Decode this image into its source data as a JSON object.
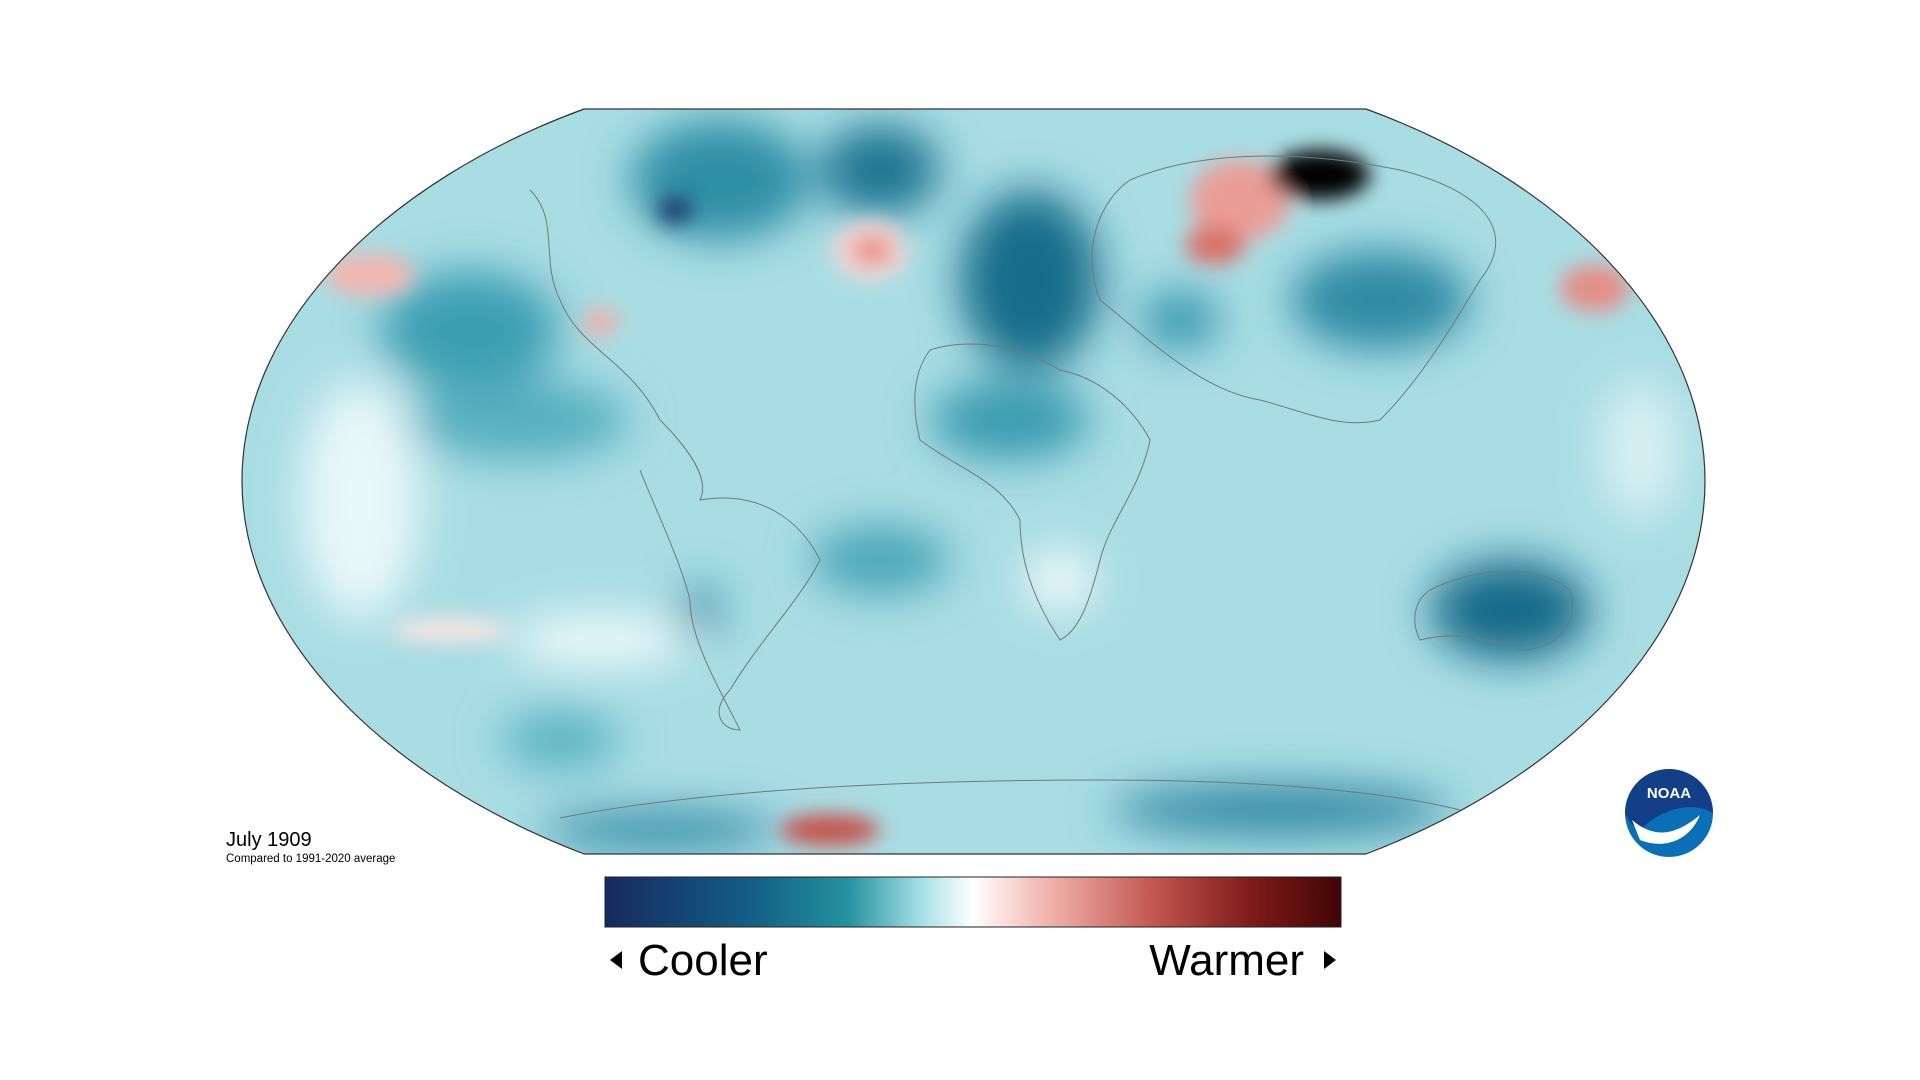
{
  "map": {
    "title": "July 1909",
    "subtitle": "Compared to 1991-2020 average",
    "legend": {
      "low_label": "Cooler",
      "high_label": "Warmer"
    },
    "logo": "NOAA"
  }
}
